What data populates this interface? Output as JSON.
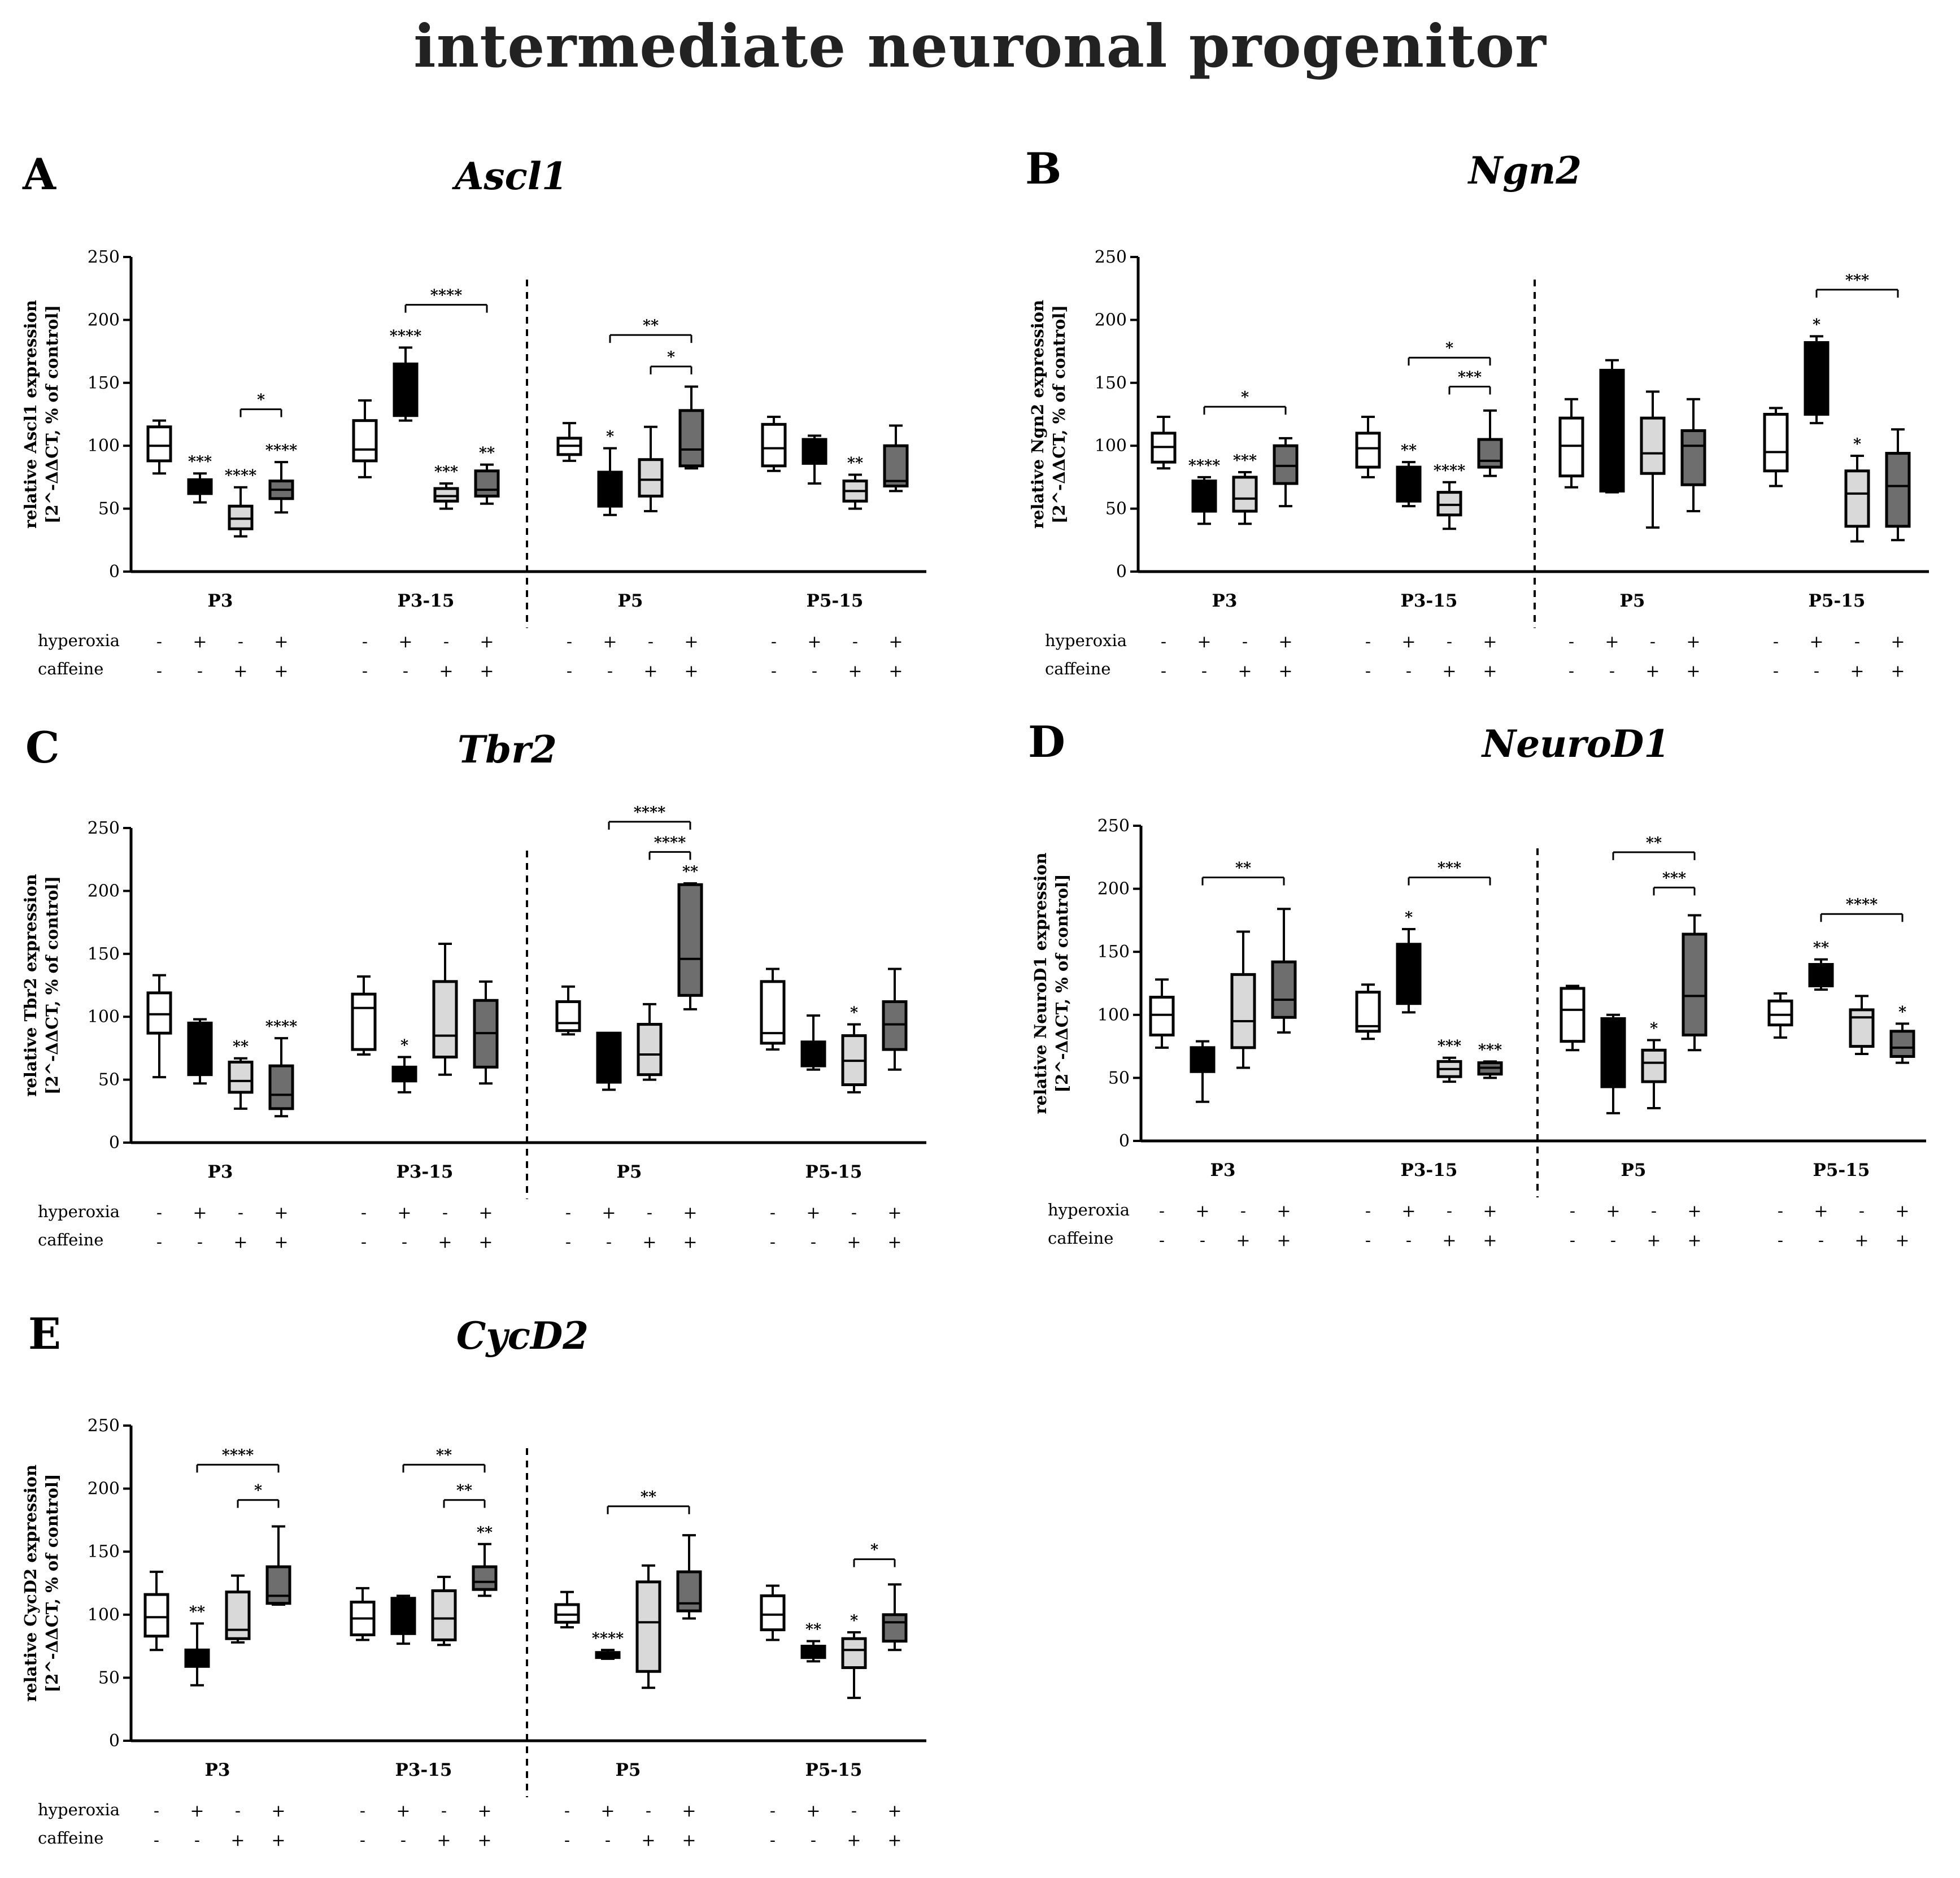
{
  "figure_title": "intermediate neuronal progenitor",
  "colors": {
    "control": "#ffffff",
    "hyperoxia": "#000000",
    "caffeine": "#d9d9d9",
    "hyperoxia_caffeine": "#6e6e6e",
    "edge": "#000000"
  },
  "conditions": [
    {
      "name": "control",
      "hyperoxia": "-",
      "caffeine": "-"
    },
    {
      "name": "hyperoxia",
      "hyperoxia": "+",
      "caffeine": "-"
    },
    {
      "name": "caffeine",
      "hyperoxia": "-",
      "caffeine": "+"
    },
    {
      "name": "hyperoxia + caffeine",
      "hyperoxia": "+",
      "caffeine": "+"
    }
  ],
  "row_labels": {
    "hyperoxia": "hyperoxia",
    "caffeine": "caffeine"
  },
  "chart_data": [
    {
      "panel": "A",
      "title": "Ascl1",
      "type": "boxplot",
      "ylabel": "relative Ascl1 expression",
      "ylabel2": "[2^-ΔΔCT, % of control]",
      "ylim": [
        0,
        250
      ],
      "yticks": [
        0,
        50,
        100,
        150,
        200,
        250
      ],
      "groups": [
        "P3",
        "P3-15",
        "P5",
        "P5-15"
      ],
      "boxes": [
        [
          [
            78,
            88,
            100,
            115,
            120
          ],
          [
            55,
            62,
            67,
            73,
            78
          ],
          [
            28,
            34,
            42,
            52,
            67
          ],
          [
            47,
            58,
            65,
            72,
            87
          ]
        ],
        [
          [
            75,
            88,
            97,
            120,
            136
          ],
          [
            120,
            124,
            135,
            165,
            178
          ],
          [
            50,
            56,
            60,
            66,
            70
          ],
          [
            54,
            60,
            65,
            80,
            85
          ]
        ],
        [
          [
            88,
            93,
            100,
            106,
            118
          ],
          [
            45,
            52,
            62,
            79,
            98
          ],
          [
            48,
            60,
            73,
            89,
            115
          ],
          [
            82,
            84,
            97,
            128,
            147
          ]
        ],
        [
          [
            80,
            84,
            98,
            117,
            123
          ],
          [
            70,
            86,
            89,
            105,
            108
          ],
          [
            50,
            56,
            64,
            72,
            77
          ],
          [
            64,
            68,
            72,
            100,
            116
          ]
        ]
      ],
      "marks": [
        [
          "",
          "***",
          "****",
          "****"
        ],
        [
          "",
          "****",
          "***",
          "**"
        ],
        [
          "",
          "*",
          "",
          ""
        ],
        [
          "",
          "",
          "**",
          ""
        ]
      ],
      "brackets": [
        {
          "group": 0,
          "from": 2,
          "to": 3,
          "y": 129,
          "label": "*"
        },
        {
          "group": 1,
          "from": 1,
          "to": 3,
          "y": 212,
          "label": "****"
        },
        {
          "group": 2,
          "from": 1,
          "to": 3,
          "y": 188,
          "label": "**"
        },
        {
          "group": 2,
          "from": 2,
          "to": 3,
          "y": 163,
          "label": "*"
        }
      ]
    },
    {
      "panel": "B",
      "title": "Ngn2",
      "type": "boxplot",
      "ylabel": "relative Ngn2 expression",
      "ylabel2": "[2^-ΔΔCT, % of control]",
      "ylim": [
        0,
        250
      ],
      "yticks": [
        0,
        50,
        100,
        150,
        200,
        250
      ],
      "groups": [
        "P3",
        "P3-15",
        "P5",
        "P5-15"
      ],
      "boxes": [
        [
          [
            82,
            87,
            99,
            110,
            123
          ],
          [
            38,
            48,
            55,
            72,
            75
          ],
          [
            38,
            48,
            58,
            75,
            79
          ],
          [
            52,
            70,
            84,
            100,
            106
          ]
        ],
        [
          [
            75,
            83,
            98,
            110,
            123
          ],
          [
            52,
            56,
            65,
            83,
            87
          ],
          [
            34,
            45,
            53,
            63,
            71
          ],
          [
            76,
            83,
            88,
            105,
            128
          ]
        ],
        [
          [
            67,
            76,
            100,
            122,
            137
          ],
          [
            63,
            64,
            100,
            160,
            168
          ],
          [
            35,
            78,
            94,
            122,
            143
          ],
          [
            48,
            69,
            100,
            112,
            137
          ]
        ],
        [
          [
            68,
            80,
            95,
            125,
            130
          ],
          [
            118,
            125,
            135,
            182,
            187
          ],
          [
            24,
            36,
            62,
            80,
            92
          ],
          [
            25,
            36,
            68,
            94,
            113
          ]
        ]
      ],
      "marks": [
        [
          "",
          "****",
          "***",
          ""
        ],
        [
          "",
          "**",
          "****",
          ""
        ],
        [
          "",
          "",
          "",
          ""
        ],
        [
          "",
          "*",
          "*",
          ""
        ]
      ],
      "brackets": [
        {
          "group": 0,
          "from": 1,
          "to": 3,
          "y": 131,
          "label": "*"
        },
        {
          "group": 1,
          "from": 1,
          "to": 3,
          "y": 170,
          "label": "*"
        },
        {
          "group": 1,
          "from": 2,
          "to": 3,
          "y": 147,
          "label": "***"
        },
        {
          "group": 3,
          "from": 1,
          "to": 3,
          "y": 224,
          "label": "***"
        }
      ]
    },
    {
      "panel": "C",
      "title": "Tbr2",
      "type": "boxplot",
      "ylabel": "relative Tbr2 expression",
      "ylabel2": "[2^-ΔΔCT, % of control]",
      "ylim": [
        0,
        250
      ],
      "yticks": [
        0,
        50,
        100,
        150,
        200,
        250
      ],
      "groups": [
        "P3",
        "P3-15",
        "P5",
        "P5-15"
      ],
      "boxes": [
        [
          [
            52,
            87,
            102,
            119,
            133
          ],
          [
            47,
            54,
            75,
            95,
            98
          ],
          [
            27,
            40,
            49,
            64,
            67
          ],
          [
            21,
            27,
            38,
            61,
            83
          ]
        ],
        [
          [
            70,
            74,
            107,
            118,
            132
          ],
          [
            40,
            49,
            53,
            60,
            68
          ],
          [
            54,
            68,
            85,
            128,
            158
          ],
          [
            47,
            60,
            87,
            113,
            128
          ]
        ],
        [
          [
            86,
            89,
            95,
            112,
            124
          ],
          [
            42,
            48,
            60,
            87,
            87
          ],
          [
            50,
            54,
            70,
            94,
            110
          ],
          [
            106,
            117,
            146,
            205,
            206
          ]
        ],
        [
          [
            74,
            79,
            87,
            128,
            138
          ],
          [
            58,
            61,
            70,
            80,
            101
          ],
          [
            40,
            46,
            65,
            85,
            94
          ],
          [
            58,
            74,
            94,
            112,
            138
          ]
        ]
      ],
      "marks": [
        [
          "",
          "",
          "**",
          "****"
        ],
        [
          "",
          "*",
          "",
          ""
        ],
        [
          "",
          "",
          "",
          "**"
        ],
        [
          "",
          "",
          "*",
          ""
        ]
      ],
      "brackets": [
        {
          "group": 2,
          "from": 1,
          "to": 3,
          "y": 255,
          "label": "****"
        },
        {
          "group": 2,
          "from": 2,
          "to": 3,
          "y": 231,
          "label": "****"
        }
      ]
    },
    {
      "panel": "D",
      "title": "NeuroD1",
      "type": "boxplot",
      "ylabel": "relative NeuroD1 expression",
      "ylabel2": "[2^-ΔΔCT, % of control]",
      "ylim": [
        0,
        250
      ],
      "yticks": [
        0,
        50,
        100,
        150,
        200,
        250
      ],
      "groups": [
        "P3",
        "P3-15",
        "P5",
        "P5-15"
      ],
      "boxes": [
        [
          [
            74,
            84,
            100,
            114,
            128
          ],
          [
            31,
            55,
            62,
            74,
            79
          ],
          [
            58,
            74,
            95,
            132,
            166
          ],
          [
            86,
            98,
            112,
            142,
            184
          ]
        ],
        [
          [
            81,
            87,
            91,
            118,
            124
          ],
          [
            102,
            109,
            112,
            156,
            168
          ],
          [
            47,
            51,
            57,
            63,
            66
          ],
          [
            50,
            53,
            58,
            62,
            63
          ]
        ],
        [
          [
            72,
            79,
            104,
            121,
            123
          ],
          [
            22,
            43,
            76,
            97,
            100
          ],
          [
            26,
            47,
            62,
            72,
            80
          ],
          [
            72,
            84,
            115,
            164,
            179
          ]
        ],
        [
          [
            82,
            92,
            100,
            111,
            117
          ],
          [
            120,
            123,
            132,
            140,
            144
          ],
          [
            69,
            75,
            98,
            104,
            115
          ],
          [
            62,
            67,
            74,
            87,
            93
          ]
        ]
      ],
      "marks": [
        [
          "",
          "",
          "",
          ""
        ],
        [
          "",
          "*",
          "***",
          "***"
        ],
        [
          "",
          "",
          "*",
          ""
        ],
        [
          "",
          "**",
          "",
          "*"
        ]
      ],
      "brackets": [
        {
          "group": 0,
          "from": 1,
          "to": 3,
          "y": 209,
          "label": "**"
        },
        {
          "group": 1,
          "from": 1,
          "to": 3,
          "y": 209,
          "label": "***"
        },
        {
          "group": 2,
          "from": 1,
          "to": 3,
          "y": 229,
          "label": "**"
        },
        {
          "group": 2,
          "from": 2,
          "to": 3,
          "y": 201,
          "label": "***"
        },
        {
          "group": 3,
          "from": 1,
          "to": 3,
          "y": 180,
          "label": "****"
        }
      ]
    },
    {
      "panel": "E",
      "title": "CycD2",
      "type": "boxplot",
      "ylabel": "relative CycD2 expression",
      "ylabel2": "[2^-ΔΔCT, % of control]",
      "ylim": [
        0,
        250
      ],
      "yticks": [
        0,
        50,
        100,
        150,
        200,
        250
      ],
      "groups": [
        "P3",
        "P3-15",
        "P5",
        "P5-15"
      ],
      "boxes": [
        [
          [
            72,
            83,
            98,
            116,
            134
          ],
          [
            44,
            59,
            65,
            72,
            93
          ],
          [
            78,
            81,
            88,
            118,
            131
          ],
          [
            108,
            109,
            115,
            138,
            170
          ]
        ],
        [
          [
            80,
            84,
            97,
            110,
            121
          ],
          [
            77,
            85,
            100,
            113,
            115
          ],
          [
            76,
            80,
            97,
            119,
            130
          ],
          [
            115,
            120,
            126,
            138,
            156
          ]
        ],
        [
          [
            90,
            94,
            100,
            108,
            118
          ],
          [
            65,
            66,
            67,
            70,
            72
          ],
          [
            42,
            55,
            94,
            126,
            139
          ],
          [
            97,
            103,
            109,
            134,
            163
          ]
        ],
        [
          [
            80,
            88,
            100,
            115,
            123
          ],
          [
            63,
            66,
            70,
            75,
            79
          ],
          [
            34,
            58,
            72,
            81,
            86
          ],
          [
            72,
            79,
            94,
            100,
            124
          ]
        ]
      ],
      "marks": [
        [
          "",
          "**",
          "",
          ""
        ],
        [
          "",
          "",
          "",
          "**"
        ],
        [
          "",
          "****",
          "",
          ""
        ],
        [
          "",
          "**",
          "*",
          ""
        ]
      ],
      "brackets": [
        {
          "group": 0,
          "from": 1,
          "to": 3,
          "y": 219,
          "label": "****"
        },
        {
          "group": 0,
          "from": 2,
          "to": 3,
          "y": 191,
          "label": "*"
        },
        {
          "group": 1,
          "from": 1,
          "to": 3,
          "y": 219,
          "label": "**"
        },
        {
          "group": 1,
          "from": 2,
          "to": 3,
          "y": 191,
          "label": "**"
        },
        {
          "group": 2,
          "from": 1,
          "to": 3,
          "y": 186,
          "label": "**"
        },
        {
          "group": 3,
          "from": 2,
          "to": 3,
          "y": 144,
          "label": "*"
        }
      ]
    }
  ]
}
